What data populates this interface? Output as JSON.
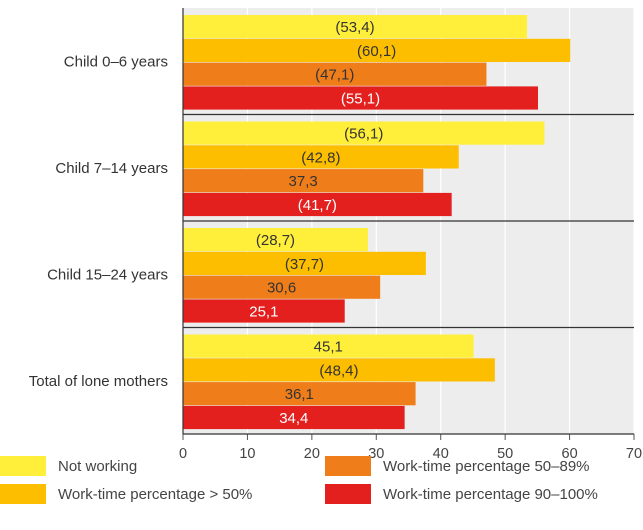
{
  "chart_data": {
    "type": "bar",
    "orientation": "horizontal",
    "categories": [
      "Child 0–6 years",
      "Child 7–14 years",
      "Child 15–24 years",
      "Total of lone mothers"
    ],
    "series": [
      {
        "name": "Not working",
        "color": "#FFEF3A",
        "values": [
          53.4,
          56.1,
          28.7,
          45.1
        ],
        "labels": [
          "(53,4)",
          "(56,1)",
          "(28,7)",
          "45,1"
        ]
      },
      {
        "name": "Work-time percentage > 50%",
        "color": "#FDBE00",
        "values": [
          60.1,
          42.8,
          37.7,
          48.4
        ],
        "labels": [
          "(60,1)",
          "(42,8)",
          "(37,7)",
          "(48,4)"
        ]
      },
      {
        "name": "Work-time percentage 50–89%",
        "color": "#EF7D1A",
        "values": [
          47.1,
          37.3,
          30.6,
          36.1
        ],
        "labels": [
          "(47,1)",
          "37,3",
          "30,6",
          "36,1"
        ]
      },
      {
        "name": "Work-time percentage 90–100%",
        "color": "#E4201F",
        "values": [
          55.1,
          41.7,
          25.1,
          34.4
        ],
        "labels": [
          "(55,1)",
          "(41,7)",
          "25,1",
          "34,4"
        ]
      }
    ],
    "xlim": [
      0,
      70
    ],
    "xticks": [
      0,
      10,
      20,
      30,
      40,
      50,
      60,
      70
    ],
    "grid": true,
    "legend_position": "bottom"
  },
  "legend": [
    {
      "label": "Not working",
      "color": "#FFEF3A"
    },
    {
      "label": "Work-time percentage > 50%",
      "color": "#FDBE00"
    },
    {
      "label": "Work-time percentage 50–89%",
      "color": "#EF7D1A"
    },
    {
      "label": "Work-time percentage 90–100%",
      "color": "#E4201F"
    }
  ],
  "colors": {
    "plot_background": "#EDEDED",
    "grid": "#FFFFFF",
    "label_dark": "#333333",
    "label_light": "#FFFFFF"
  }
}
